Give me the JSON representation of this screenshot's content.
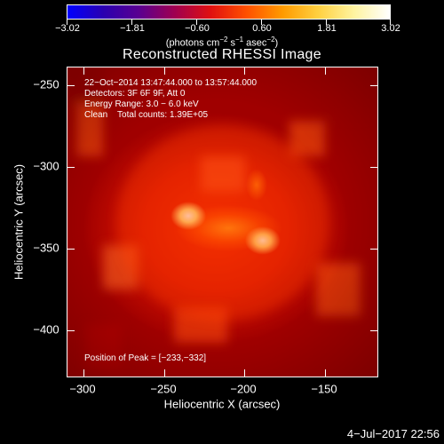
{
  "colorbar": {
    "tick_labels": [
      "−3.02",
      "−1.81",
      "−0.60",
      "0.60",
      "1.81",
      "3.02"
    ],
    "units_prefix": "(photons cm",
    "units_exp1": "−2",
    "units_mid1": " s",
    "units_exp2": "−1",
    "units_mid2": " asec",
    "units_exp3": "−2",
    "units_suffix": ")",
    "colors": [
      "#0000ff",
      "#2a00b0",
      "#5a0090",
      "#a00050",
      "#e01010",
      "#ff5000",
      "#ff9a00",
      "#ffd040",
      "#fff4a0",
      "#ffffff"
    ]
  },
  "title": "Reconstructed RHESSI Image",
  "overlay": {
    "line1": "22−Oct−2014 13:47:44.000 to 13:57:44.000",
    "line2": "Detectors: 3F 6F 9F, Att 0",
    "line3": "Energy Range: 3.0 − 6.0 keV",
    "line4": "Clean    Total counts: 1.39E+05",
    "peak": "Position of Peak = [−233,−332]"
  },
  "axes": {
    "x_title": "Heliocentric X (arcsec)",
    "y_title": "Heliocentric Y (arcsec)",
    "x_ticks": [
      "−300",
      "−250",
      "−200",
      "−150"
    ],
    "y_ticks": [
      "−250",
      "−300",
      "−350",
      "−400"
    ]
  },
  "footer": {
    "timestamp": "4−Jul−2017 22:56"
  }
}
